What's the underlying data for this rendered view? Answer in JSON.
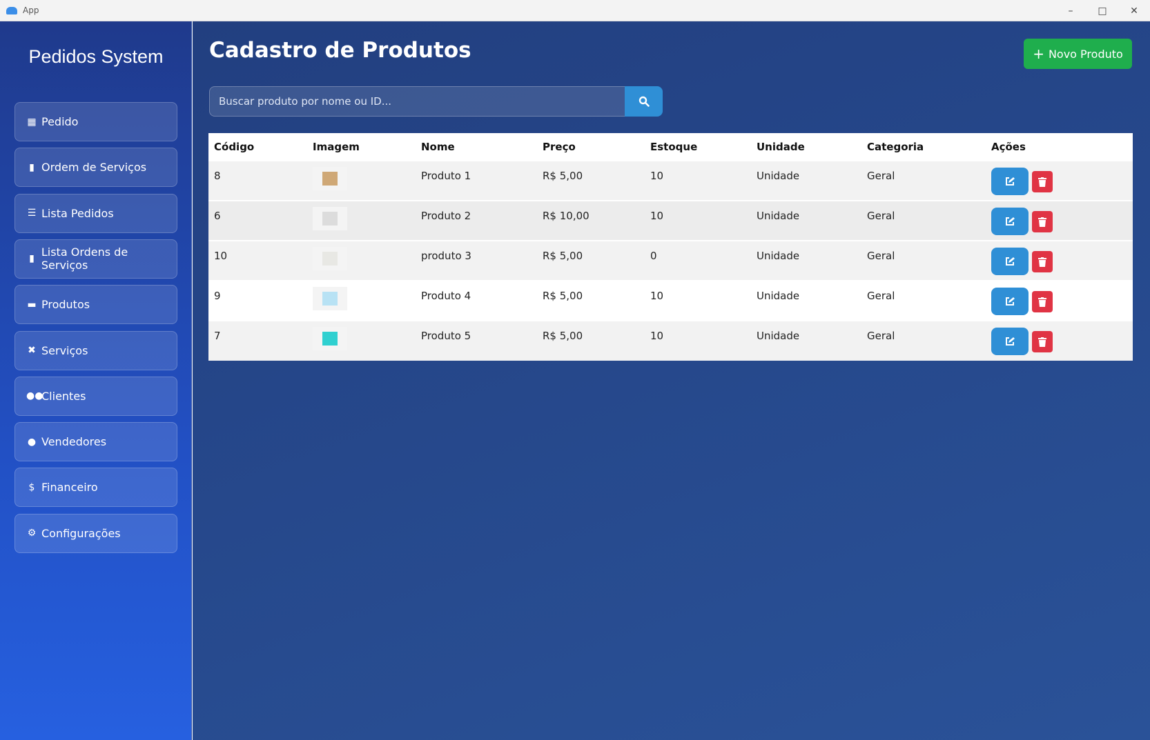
{
  "window": {
    "title": "App"
  },
  "sidebar": {
    "brand": "Pedidos System",
    "items": [
      {
        "label": "Pedido",
        "icon": "cash-register-icon"
      },
      {
        "label": "Ordem de Serviços",
        "icon": "clipboard-icon"
      },
      {
        "label": "Lista Pedidos",
        "icon": "list-icon"
      },
      {
        "label": "Lista Ordens de Serviços",
        "icon": "clipboard-icon"
      },
      {
        "label": "Produtos",
        "icon": "box-icon"
      },
      {
        "label": "Serviços",
        "icon": "tools-icon"
      },
      {
        "label": "Clientes",
        "icon": "users-icon"
      },
      {
        "label": "Vendedores",
        "icon": "user-icon"
      },
      {
        "label": "Financeiro",
        "icon": "dollar-icon"
      },
      {
        "label": "Configurações",
        "icon": "gear-icon"
      }
    ]
  },
  "main": {
    "title": "Cadastro de Produtos",
    "new_button": "Novo Produto",
    "search": {
      "placeholder": "Buscar produto por nome ou ID..."
    },
    "table": {
      "headers": [
        "Código",
        "Imagem",
        "Nome",
        "Preço",
        "Estoque",
        "Unidade",
        "Categoria",
        "Ações"
      ],
      "rows": [
        {
          "codigo": "8",
          "nome": "Produto 1",
          "preco": "R$ 5,00",
          "estoque": "10",
          "unidade": "Unidade",
          "categoria": "Geral",
          "image_color": "#cfa876"
        },
        {
          "codigo": "6",
          "nome": "Produto 2",
          "preco": "R$ 10,00",
          "estoque": "10",
          "unidade": "Unidade",
          "categoria": "Geral",
          "image_color": "#dcdcdc"
        },
        {
          "codigo": "10",
          "nome": "produto 3",
          "preco": "R$ 5,00",
          "estoque": "0",
          "unidade": "Unidade",
          "categoria": "Geral",
          "image_color": "#e8e8e4"
        },
        {
          "codigo": "9",
          "nome": "Produto 4",
          "preco": "R$ 5,00",
          "estoque": "10",
          "unidade": "Unidade",
          "categoria": "Geral",
          "image_color": "#b8e2f4"
        },
        {
          "codigo": "7",
          "nome": "Produto 5",
          "preco": "R$ 5,00",
          "estoque": "10",
          "unidade": "Unidade",
          "categoria": "Geral",
          "image_color": "#2fd0d0"
        }
      ]
    }
  },
  "colors": {
    "accent": "#2f8fd6",
    "success": "#1fae4d",
    "danger": "#e03444"
  }
}
